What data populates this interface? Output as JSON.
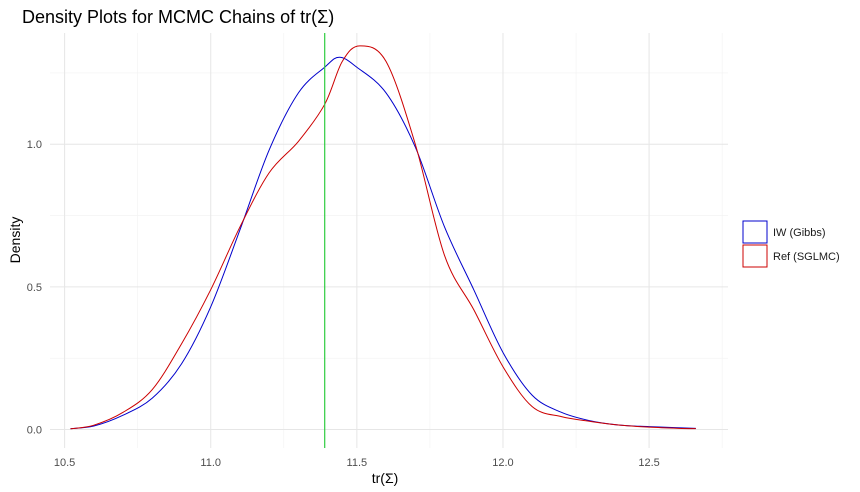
{
  "chart_data": {
    "type": "line",
    "title": "Density Plots for MCMC Chains of tr(Σ)",
    "xlabel": "tr(Σ)",
    "ylabel": "Density",
    "xlim": [
      10.45,
      12.77
    ],
    "ylim": [
      -0.065,
      1.39
    ],
    "x_ticks": [
      10.5,
      11.0,
      11.5,
      12.0,
      12.5
    ],
    "x_tick_labels": [
      "10.5",
      "11.0",
      "11.5",
      "12.0",
      "12.5"
    ],
    "y_ticks": [
      0.0,
      0.5,
      1.0
    ],
    "y_tick_labels": [
      "0.0",
      "0.5",
      "1.0"
    ],
    "grid": true,
    "legend_position": "right",
    "vline": {
      "x": 11.39,
      "color": "#2ecc40"
    },
    "series": [
      {
        "name": "IW (Gibbs)",
        "color": "#0000cc",
        "points": [
          [
            10.52,
            0.003
          ],
          [
            10.6,
            0.012
          ],
          [
            10.7,
            0.05
          ],
          [
            10.8,
            0.11
          ],
          [
            10.9,
            0.23
          ],
          [
            11.0,
            0.43
          ],
          [
            11.1,
            0.7
          ],
          [
            11.2,
            0.98
          ],
          [
            11.3,
            1.18
          ],
          [
            11.39,
            1.27
          ],
          [
            11.44,
            1.305
          ],
          [
            11.5,
            1.27
          ],
          [
            11.6,
            1.18
          ],
          [
            11.7,
            0.99
          ],
          [
            11.8,
            0.71
          ],
          [
            11.9,
            0.49
          ],
          [
            12.0,
            0.27
          ],
          [
            12.1,
            0.12
          ],
          [
            12.2,
            0.06
          ],
          [
            12.3,
            0.03
          ],
          [
            12.4,
            0.015
          ],
          [
            12.5,
            0.01
          ],
          [
            12.6,
            0.006
          ],
          [
            12.66,
            0.004
          ]
        ]
      },
      {
        "name": "Ref (SGLMC)",
        "color": "#cc0000",
        "points": [
          [
            10.52,
            0.002
          ],
          [
            10.6,
            0.015
          ],
          [
            10.7,
            0.06
          ],
          [
            10.8,
            0.14
          ],
          [
            10.9,
            0.3
          ],
          [
            11.0,
            0.49
          ],
          [
            11.1,
            0.71
          ],
          [
            11.2,
            0.9
          ],
          [
            11.3,
            1.01
          ],
          [
            11.39,
            1.14
          ],
          [
            11.45,
            1.29
          ],
          [
            11.51,
            1.345
          ],
          [
            11.6,
            1.29
          ],
          [
            11.7,
            1.0
          ],
          [
            11.8,
            0.61
          ],
          [
            11.9,
            0.42
          ],
          [
            12.0,
            0.22
          ],
          [
            12.1,
            0.08
          ],
          [
            12.2,
            0.045
          ],
          [
            12.3,
            0.028
          ],
          [
            12.4,
            0.015
          ],
          [
            12.5,
            0.008
          ],
          [
            12.6,
            0.004
          ],
          [
            12.66,
            0.003
          ]
        ]
      }
    ]
  }
}
